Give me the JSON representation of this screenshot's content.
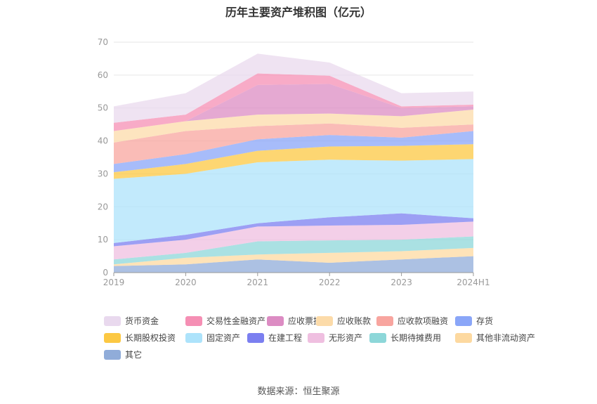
{
  "title": "历年主要资产堆积图（亿元）",
  "source": "数据来源：恒生聚源",
  "chart_data": {
    "type": "area",
    "stacked": true,
    "categories": [
      "2019",
      "2020",
      "2021",
      "2022",
      "2023",
      "2024H1"
    ],
    "ylim": [
      0,
      70
    ],
    "yticks": [
      0,
      10,
      20,
      30,
      40,
      50,
      60,
      70
    ],
    "grid": true,
    "legend_position": "bottom",
    "series": [
      {
        "name": "其它",
        "color": "#90acd9",
        "values": [
          2.0,
          2.5,
          4.0,
          3.0,
          4.0,
          5.0
        ]
      },
      {
        "name": "其他非流动资产",
        "color": "#fdd9a0",
        "values": [
          0.5,
          2.0,
          1.5,
          3.0,
          2.5,
          2.5
        ]
      },
      {
        "name": "长期待摊费用",
        "color": "#8dd7d9",
        "values": [
          1.5,
          1.5,
          4.0,
          3.8,
          3.5,
          3.5
        ]
      },
      {
        "name": "无形资产",
        "color": "#efbfe0",
        "values": [
          4.0,
          4.0,
          4.5,
          4.5,
          4.5,
          4.5
        ]
      },
      {
        "name": "在建工程",
        "color": "#7b7ff0",
        "values": [
          1.0,
          1.5,
          1.0,
          2.5,
          3.5,
          1.0
        ]
      },
      {
        "name": "固定资产",
        "color": "#ade3fb",
        "values": [
          19.5,
          18.5,
          18.5,
          17.5,
          16.0,
          18.0
        ]
      },
      {
        "name": "长期股权投资",
        "color": "#fcc843",
        "values": [
          2.0,
          3.0,
          3.5,
          4.0,
          4.5,
          4.5
        ]
      },
      {
        "name": "存货",
        "color": "#8aa6f8",
        "values": [
          2.5,
          3.0,
          3.5,
          3.5,
          2.5,
          4.0
        ]
      },
      {
        "name": "应收款项融资",
        "color": "#f8a59f",
        "values": [
          6.5,
          7.0,
          4.0,
          3.5,
          3.0,
          2.0
        ]
      },
      {
        "name": "应收账款",
        "color": "#fcdba9",
        "values": [
          3.5,
          3.0,
          3.5,
          3.0,
          3.5,
          4.5
        ]
      },
      {
        "name": "应收票据",
        "color": "#dc8cc3",
        "values": [
          0.0,
          0.0,
          9.0,
          9.0,
          2.5,
          1.0
        ]
      },
      {
        "name": "交易性金融资产",
        "color": "#f58fb4",
        "values": [
          2.5,
          2.0,
          3.5,
          2.5,
          0.5,
          0.5
        ]
      },
      {
        "name": "货币资金",
        "color": "#e9d9ee",
        "values": [
          5.0,
          6.5,
          6.0,
          4.0,
          4.0,
          4.0
        ]
      }
    ]
  },
  "legend_order": [
    "货币资金",
    "交易性金融资产",
    "应收票据",
    "应收账款",
    "应收款项融资",
    "存货",
    "长期股权投资",
    "固定资产",
    "在建工程",
    "无形资产",
    "长期待摊费用",
    "其他非流动资产",
    "其它"
  ]
}
